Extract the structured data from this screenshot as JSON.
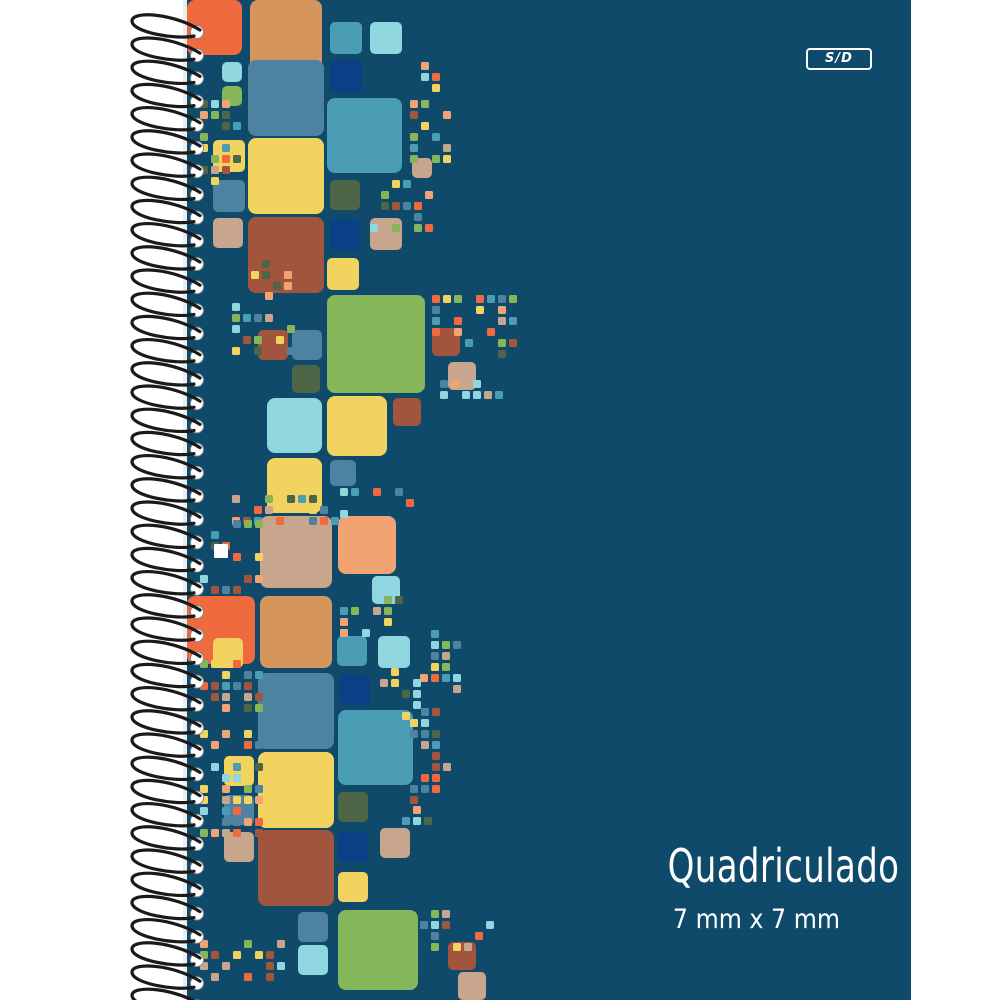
{
  "cover": {
    "brand_logo": "S/D",
    "title": "Quadriculado",
    "subtitle": "7 mm x 7 mm",
    "background_color": "#0f4a6b"
  },
  "palette": {
    "orange": "#ef6a3f",
    "tan": "#d6955c",
    "light_blue": "#8fd6df",
    "steel_blue": "#4d82a0",
    "teal": "#4b9cb5",
    "yellow": "#f3d35f",
    "brown": "#a1553d",
    "beige": "#c8a68e",
    "green": "#86b65a",
    "peach": "#f2a374",
    "dark_green": "#4f6548",
    "navy": "#0b3f86"
  },
  "spiral": {
    "coil_color": "#1a1a1a",
    "hole_color": "#ffffff"
  }
}
